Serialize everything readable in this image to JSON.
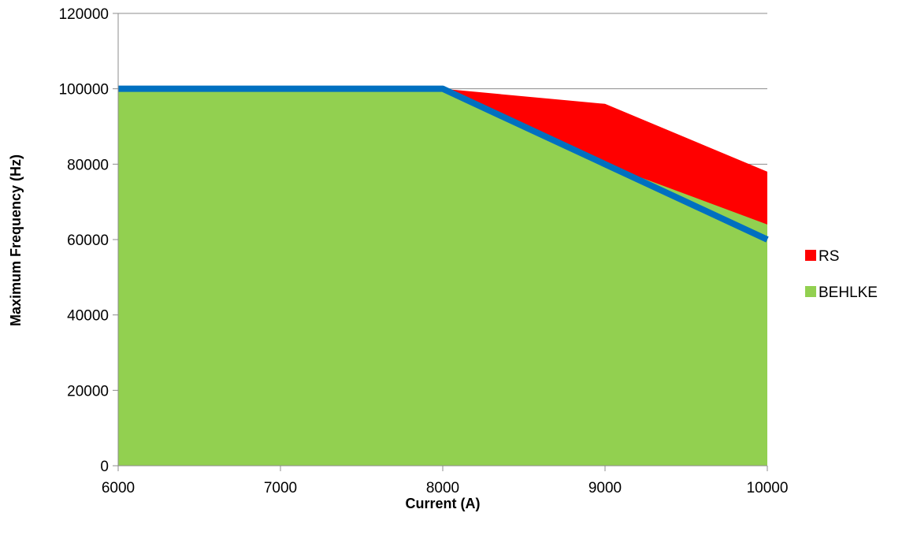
{
  "chart_data": {
    "type": "area",
    "xlabel": "Current (A)",
    "ylabel": "Maximum Frequency (Hz)",
    "xlim": [
      6000,
      10000
    ],
    "ylim": [
      0,
      120000
    ],
    "x_ticks": [
      "6000",
      "7000",
      "8000",
      "9000",
      "10000"
    ],
    "y_ticks": [
      "0",
      "20000",
      "40000",
      "60000",
      "80000",
      "100000",
      "120000"
    ],
    "grid": "horizontal",
    "legend_position": "right",
    "series": [
      {
        "name": "RS",
        "type": "area",
        "color": "#ff0000",
        "x": [
          6000,
          8000,
          9000,
          10000
        ],
        "y": [
          100000,
          100000,
          96000,
          78000
        ]
      },
      {
        "name": "BEHLKE",
        "type": "area",
        "color": "#92d050",
        "x": [
          6000,
          8000,
          9000,
          10000
        ],
        "y": [
          100000,
          100000,
          80000,
          64000
        ]
      },
      {
        "type": "line",
        "color": "#0070c0",
        "x": [
          6000,
          8000,
          9000,
          10000
        ],
        "y": [
          100000,
          100000,
          80000,
          60000
        ]
      }
    ],
    "legend": [
      {
        "label": "RS",
        "color": "#ff0000"
      },
      {
        "label": "BEHLKE",
        "color": "#92d050"
      }
    ]
  }
}
